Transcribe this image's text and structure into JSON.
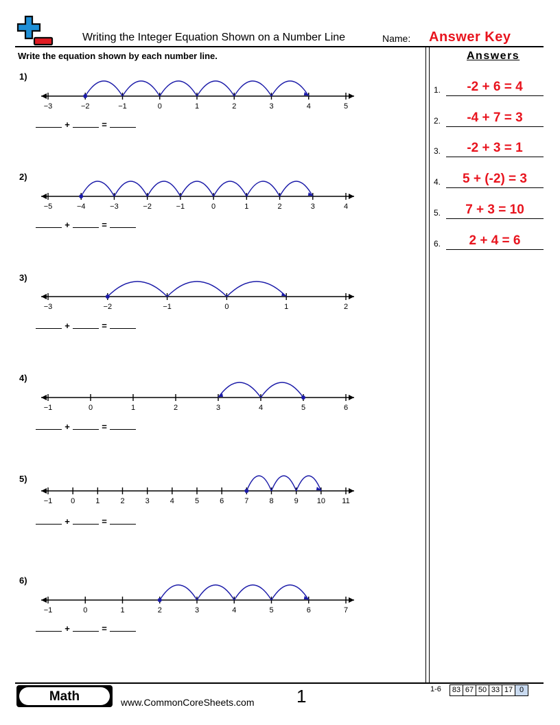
{
  "header": {
    "title": "Writing the Integer Equation Shown on a Number Line",
    "name_label": "Name:",
    "answer_key": "Answer Key"
  },
  "instructions": "Write the equation shown by each number line.",
  "answers": {
    "heading": "Answers",
    "items": [
      {
        "num": "1.",
        "text": "-2 + 6 = 4"
      },
      {
        "num": "2.",
        "text": "-4 + 7 = 3"
      },
      {
        "num": "3.",
        "text": "-2 + 3 = 1"
      },
      {
        "num": "4.",
        "text": "5 + (-2) = 3"
      },
      {
        "num": "5.",
        "text": "7 + 3 = 10"
      },
      {
        "num": "6.",
        "text": "2 + 4 = 6"
      }
    ]
  },
  "blank_template": {
    "plus": "+",
    "equals": "="
  },
  "problems": [
    {
      "label": "1)",
      "ticks": [
        "−3",
        "−2",
        "−1",
        "0",
        "1",
        "2",
        "3",
        "4",
        "5"
      ],
      "start": -2,
      "hops": 6,
      "step": 1
    },
    {
      "label": "2)",
      "ticks": [
        "−5",
        "−4",
        "−3",
        "−2",
        "−1",
        "0",
        "1",
        "2",
        "3",
        "4"
      ],
      "start": -4,
      "hops": 7,
      "step": 1
    },
    {
      "label": "3)",
      "ticks": [
        "−3",
        "−2",
        "−1",
        "0",
        "1",
        "2"
      ],
      "start": -2,
      "hops": 3,
      "step": 1
    },
    {
      "label": "4)",
      "ticks": [
        "−1",
        "0",
        "1",
        "2",
        "3",
        "4",
        "5",
        "6"
      ],
      "start": 5,
      "hops": 2,
      "step": -1
    },
    {
      "label": "5)",
      "ticks": [
        "−1",
        "0",
        "1",
        "2",
        "3",
        "4",
        "5",
        "6",
        "7",
        "8",
        "9",
        "10",
        "11"
      ],
      "start": 7,
      "hops": 3,
      "step": 1
    },
    {
      "label": "6)",
      "ticks": [
        "−1",
        "0",
        "1",
        "2",
        "3",
        "4",
        "5",
        "6",
        "7"
      ],
      "start": 2,
      "hops": 4,
      "step": 1
    }
  ],
  "footer": {
    "subject": "Math",
    "url": "www.CommonCoreSheets.com",
    "page": "1",
    "score_range": "1-6",
    "scores": [
      "83",
      "67",
      "50",
      "33",
      "17",
      "0"
    ]
  },
  "colors": {
    "arc": "#1a1aa8",
    "answer": "#e8141e",
    "logo_blue": "#1e8fd6",
    "logo_red": "#e01b22"
  }
}
